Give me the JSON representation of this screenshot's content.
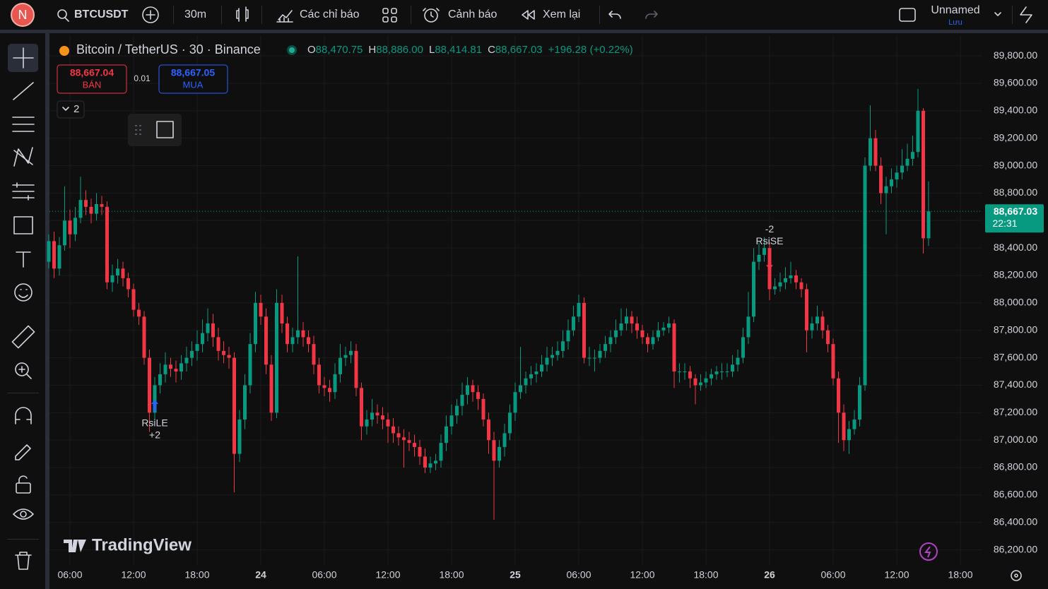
{
  "toolbar": {
    "avatar": "N",
    "symbol": "BTCUSDT",
    "interval": "30m",
    "indicators": "Các chỉ báo",
    "alerts": "Cảnh báo",
    "replay": "Xem lại",
    "layout_name": "Unnamed",
    "save": "Lưu"
  },
  "legend": {
    "title": "Bitcoin / TetherUS · 30 · Binance",
    "o_label": "O",
    "o": "88,470.75",
    "h_label": "H",
    "h": "88,886.00",
    "l_label": "L",
    "l": "88,414.81",
    "c_label": "C",
    "c": "88,667.03",
    "change": "+196.28 (+0.22%)"
  },
  "trade": {
    "sell_price": "88,667.04",
    "sell": "BÁN",
    "qty": "0.01",
    "buy_price": "88,667.05",
    "buy": "MUA"
  },
  "indicator_count": "2",
  "watermark": "TradingView",
  "chart_data": {
    "type": "candlestick",
    "up_color": "#089981",
    "down_color": "#f23645",
    "grid": true,
    "last_price_label": "88,667.03",
    "countdown": "22:31",
    "ylim": [
      86090,
      89950
    ],
    "yticks": [
      {
        "value": 86200,
        "label": "86,200.00"
      },
      {
        "value": 86400,
        "label": "86,400.00"
      },
      {
        "value": 86600,
        "label": "86,600.00"
      },
      {
        "value": 86800,
        "label": "86,800.00"
      },
      {
        "value": 87000,
        "label": "87,000.00"
      },
      {
        "value": 87200,
        "label": "87,200.00"
      },
      {
        "value": 87400,
        "label": "87,400.00"
      },
      {
        "value": 87600,
        "label": "87,600.00"
      },
      {
        "value": 87800,
        "label": "87,800.00"
      },
      {
        "value": 88000,
        "label": "88,000.00"
      },
      {
        "value": 88200,
        "label": "88,200.00"
      },
      {
        "value": 88400,
        "label": "88,400.00"
      },
      {
        "value": 88600,
        "label": "88,600.00"
      },
      {
        "value": 88800,
        "label": "88,800.00"
      },
      {
        "value": 89000,
        "label": "89,000.00"
      },
      {
        "value": 89200,
        "label": "89,200.00"
      },
      {
        "value": 89400,
        "label": "89,400.00"
      },
      {
        "value": 89600,
        "label": "89,600.00"
      },
      {
        "value": 89800,
        "label": "89,800.00"
      }
    ],
    "xticks": [
      {
        "value": 4,
        "label": "06:00"
      },
      {
        "value": 16,
        "label": "12:00"
      },
      {
        "value": 28,
        "label": "18:00"
      },
      {
        "value": 40,
        "label": "24"
      },
      {
        "value": 52,
        "label": "06:00"
      },
      {
        "value": 64,
        "label": "12:00"
      },
      {
        "value": 76,
        "label": "18:00"
      },
      {
        "value": 88,
        "label": "25"
      },
      {
        "value": 100,
        "label": "06:00"
      },
      {
        "value": 112,
        "label": "12:00"
      },
      {
        "value": 124,
        "label": "18:00"
      },
      {
        "value": 136,
        "label": "26"
      },
      {
        "value": 148,
        "label": "06:00"
      },
      {
        "value": 160,
        "label": "12:00"
      },
      {
        "value": 172,
        "label": "18:00"
      }
    ],
    "signals": [
      {
        "index": 20,
        "side": "long",
        "label": "RsiLE",
        "qty": "+2"
      },
      {
        "index": 136,
        "side": "short",
        "label": "RsiSE",
        "qty": "-2"
      }
    ],
    "candles": [
      [
        88300,
        88500,
        88250,
        88450
      ],
      [
        88450,
        88520,
        88180,
        88250
      ],
      [
        88250,
        88480,
        88200,
        88420
      ],
      [
        88420,
        88850,
        88380,
        88600
      ],
      [
        88600,
        88680,
        88400,
        88500
      ],
      [
        88500,
        88700,
        88450,
        88620
      ],
      [
        88620,
        88920,
        88580,
        88750
      ],
      [
        88750,
        88820,
        88640,
        88700
      ],
      [
        88700,
        88760,
        88580,
        88650
      ],
      [
        88650,
        88800,
        88600,
        88720
      ],
      [
        88720,
        88780,
        88640,
        88700
      ],
      [
        88700,
        88740,
        88100,
        88150
      ],
      [
        88150,
        88280,
        88080,
        88200
      ],
      [
        88200,
        88320,
        88140,
        88250
      ],
      [
        88250,
        88300,
        88120,
        88180
      ],
      [
        88180,
        88220,
        88040,
        88100
      ],
      [
        88100,
        88140,
        87900,
        87950
      ],
      [
        87950,
        88000,
        87840,
        87900
      ],
      [
        87900,
        87940,
        87550,
        87600
      ],
      [
        87600,
        87660,
        87060,
        87200
      ],
      [
        87200,
        87460,
        87140,
        87400
      ],
      [
        87400,
        87560,
        87340,
        87480
      ],
      [
        87480,
        87640,
        87420,
        87550
      ],
      [
        87550,
        87600,
        87460,
        87520
      ],
      [
        87520,
        87580,
        87420,
        87500
      ],
      [
        87500,
        87620,
        87440,
        87560
      ],
      [
        87560,
        87680,
        87500,
        87600
      ],
      [
        87600,
        87720,
        87540,
        87650
      ],
      [
        87650,
        87800,
        87580,
        87700
      ],
      [
        87700,
        87880,
        87640,
        87780
      ],
      [
        87780,
        87960,
        87720,
        87850
      ],
      [
        87850,
        87920,
        87680,
        87750
      ],
      [
        87750,
        87820,
        87580,
        87650
      ],
      [
        87650,
        87720,
        87560,
        87620
      ],
      [
        87620,
        87680,
        87520,
        87600
      ],
      [
        87600,
        87640,
        86620,
        86900
      ],
      [
        86900,
        87220,
        86840,
        87150
      ],
      [
        87150,
        87480,
        87080,
        87400
      ],
      [
        87400,
        87780,
        87340,
        87700
      ],
      [
        87700,
        88080,
        87640,
        88000
      ],
      [
        88000,
        88060,
        87840,
        87900
      ],
      [
        87900,
        87960,
        87480,
        87550
      ],
      [
        87550,
        87620,
        87140,
        87200
      ],
      [
        87200,
        88100,
        87160,
        88000
      ],
      [
        88000,
        88060,
        87780,
        87850
      ],
      [
        87850,
        87900,
        87640,
        87700
      ],
      [
        87700,
        87820,
        87640,
        87750
      ],
      [
        87750,
        88340,
        87700,
        87800
      ],
      [
        87800,
        87860,
        87680,
        87750
      ],
      [
        87750,
        87800,
        87640,
        87700
      ],
      [
        87700,
        87760,
        87480,
        87550
      ],
      [
        87550,
        87600,
        87340,
        87400
      ],
      [
        87400,
        87460,
        87320,
        87380
      ],
      [
        87380,
        87440,
        87280,
        87350
      ],
      [
        87350,
        87560,
        87300,
        87480
      ],
      [
        87480,
        87700,
        87420,
        87600
      ],
      [
        87600,
        87680,
        87540,
        87620
      ],
      [
        87620,
        87720,
        87560,
        87650
      ],
      [
        87650,
        87700,
        87320,
        87380
      ],
      [
        87380,
        87420,
        87000,
        87100
      ],
      [
        87100,
        87220,
        87040,
        87150
      ],
      [
        87150,
        87300,
        87100,
        87200
      ],
      [
        87200,
        87260,
        87120,
        87180
      ],
      [
        87180,
        87240,
        87080,
        87150
      ],
      [
        87150,
        87200,
        86980,
        87100
      ],
      [
        87100,
        87160,
        86980,
        87050
      ],
      [
        87050,
        87100,
        86960,
        87020
      ],
      [
        87020,
        87080,
        86800,
        87000
      ],
      [
        87000,
        87060,
        86920,
        86980
      ],
      [
        86980,
        87040,
        86880,
        86950
      ],
      [
        86950,
        87000,
        86820,
        86880
      ],
      [
        86880,
        86940,
        86760,
        86800
      ],
      [
        86800,
        86880,
        86760,
        86830
      ],
      [
        86830,
        86900,
        86780,
        86850
      ],
      [
        86850,
        87040,
        86800,
        86980
      ],
      [
        86980,
        87180,
        86920,
        87100
      ],
      [
        87100,
        87260,
        87040,
        87180
      ],
      [
        87180,
        87300,
        87120,
        87250
      ],
      [
        87250,
        87420,
        87180,
        87330
      ],
      [
        87330,
        87460,
        87260,
        87400
      ],
      [
        87400,
        87440,
        87280,
        87350
      ],
      [
        87350,
        87400,
        87220,
        87300
      ],
      [
        87300,
        87340,
        87100,
        87150
      ],
      [
        87150,
        87200,
        86900,
        87000
      ],
      [
        87000,
        87060,
        86420,
        86850
      ],
      [
        86850,
        87000,
        86800,
        86950
      ],
      [
        86950,
        87120,
        86880,
        87050
      ],
      [
        87050,
        87260,
        87000,
        87200
      ],
      [
        87200,
        87420,
        87140,
        87350
      ],
      [
        87350,
        87680,
        87300,
        87400
      ],
      [
        87400,
        87500,
        87340,
        87450
      ],
      [
        87450,
        87540,
        87400,
        87480
      ],
      [
        87480,
        87560,
        87420,
        87500
      ],
      [
        87500,
        87620,
        87460,
        87550
      ],
      [
        87550,
        87680,
        87500,
        87600
      ],
      [
        87600,
        87680,
        87540,
        87620
      ],
      [
        87620,
        87720,
        87580,
        87650
      ],
      [
        87650,
        87800,
        87600,
        87720
      ],
      [
        87720,
        87880,
        87660,
        87800
      ],
      [
        87800,
        87980,
        87760,
        87900
      ],
      [
        87900,
        88060,
        87860,
        88000
      ],
      [
        88000,
        88040,
        87560,
        87600
      ],
      [
        87600,
        87680,
        87540,
        87600
      ],
      [
        87600,
        87660,
        87500,
        87600
      ],
      [
        87600,
        87700,
        87560,
        87650
      ],
      [
        87650,
        87760,
        87600,
        87700
      ],
      [
        87700,
        87800,
        87640,
        87750
      ],
      [
        87750,
        87880,
        87700,
        87800
      ],
      [
        87800,
        87960,
        87760,
        87850
      ],
      [
        87850,
        87960,
        87800,
        87900
      ],
      [
        87900,
        87940,
        87780,
        87850
      ],
      [
        87850,
        87900,
        87740,
        87800
      ],
      [
        87800,
        87840,
        87700,
        87750
      ],
      [
        87750,
        87780,
        87640,
        87700
      ],
      [
        87700,
        87800,
        87660,
        87750
      ],
      [
        87750,
        87860,
        87720,
        87800
      ],
      [
        87800,
        87860,
        87760,
        87820
      ],
      [
        87820,
        87900,
        87780,
        87850
      ],
      [
        87850,
        87880,
        87380,
        87500
      ],
      [
        87500,
        87560,
        87420,
        87500
      ],
      [
        87500,
        87560,
        87440,
        87500
      ],
      [
        87500,
        87540,
        87380,
        87450
      ],
      [
        87450,
        87480,
        87260,
        87400
      ],
      [
        87400,
        87480,
        87360,
        87420
      ],
      [
        87420,
        87500,
        87380,
        87450
      ],
      [
        87450,
        87520,
        87400,
        87480
      ],
      [
        87480,
        87540,
        87440,
        87500
      ],
      [
        87500,
        87560,
        87440,
        87500
      ],
      [
        87500,
        87560,
        87460,
        87500
      ],
      [
        87500,
        87620,
        87460,
        87550
      ],
      [
        87550,
        87660,
        87500,
        87600
      ],
      [
        87600,
        87820,
        87560,
        87750
      ],
      [
        87750,
        88080,
        87700,
        87900
      ],
      [
        87900,
        88400,
        87860,
        88300
      ],
      [
        88300,
        88440,
        88240,
        88350
      ],
      [
        88350,
        88480,
        88300,
        88400
      ],
      [
        88400,
        88440,
        88020,
        88100
      ],
      [
        88100,
        88180,
        88060,
        88120
      ],
      [
        88120,
        88220,
        88080,
        88150
      ],
      [
        88150,
        88260,
        88100,
        88180
      ],
      [
        88180,
        88300,
        88140,
        88200
      ],
      [
        88200,
        88240,
        88100,
        88150
      ],
      [
        88150,
        88180,
        88040,
        88100
      ],
      [
        88100,
        88140,
        87640,
        87800
      ],
      [
        87800,
        87900,
        87740,
        87850
      ],
      [
        87850,
        87980,
        87800,
        87900
      ],
      [
        87900,
        87940,
        87740,
        87800
      ],
      [
        87800,
        87840,
        87640,
        87700
      ],
      [
        87700,
        87740,
        87400,
        87450
      ],
      [
        87450,
        87500,
        86980,
        87200
      ],
      [
        87200,
        87260,
        86920,
        87000
      ],
      [
        87000,
        87140,
        86900,
        87080
      ],
      [
        87080,
        87220,
        87040,
        87150
      ],
      [
        87150,
        87460,
        87100,
        87400
      ],
      [
        87400,
        89060,
        87360,
        89000
      ],
      [
        89000,
        89440,
        88960,
        89200
      ],
      [
        89200,
        89260,
        88960,
        89000
      ],
      [
        89000,
        89060,
        88720,
        88800
      ],
      [
        88800,
        88920,
        88500,
        88850
      ],
      [
        88850,
        88980,
        88800,
        88900
      ],
      [
        88900,
        89000,
        88840,
        88950
      ],
      [
        88950,
        89120,
        88900,
        89000
      ],
      [
        89000,
        89160,
        88960,
        89050
      ],
      [
        89050,
        89220,
        89000,
        89100
      ],
      [
        89100,
        89560,
        89060,
        89400
      ],
      [
        89400,
        89420,
        88360,
        88470.75
      ],
      [
        88470.75,
        88886,
        88414.81,
        88667.03
      ]
    ]
  }
}
